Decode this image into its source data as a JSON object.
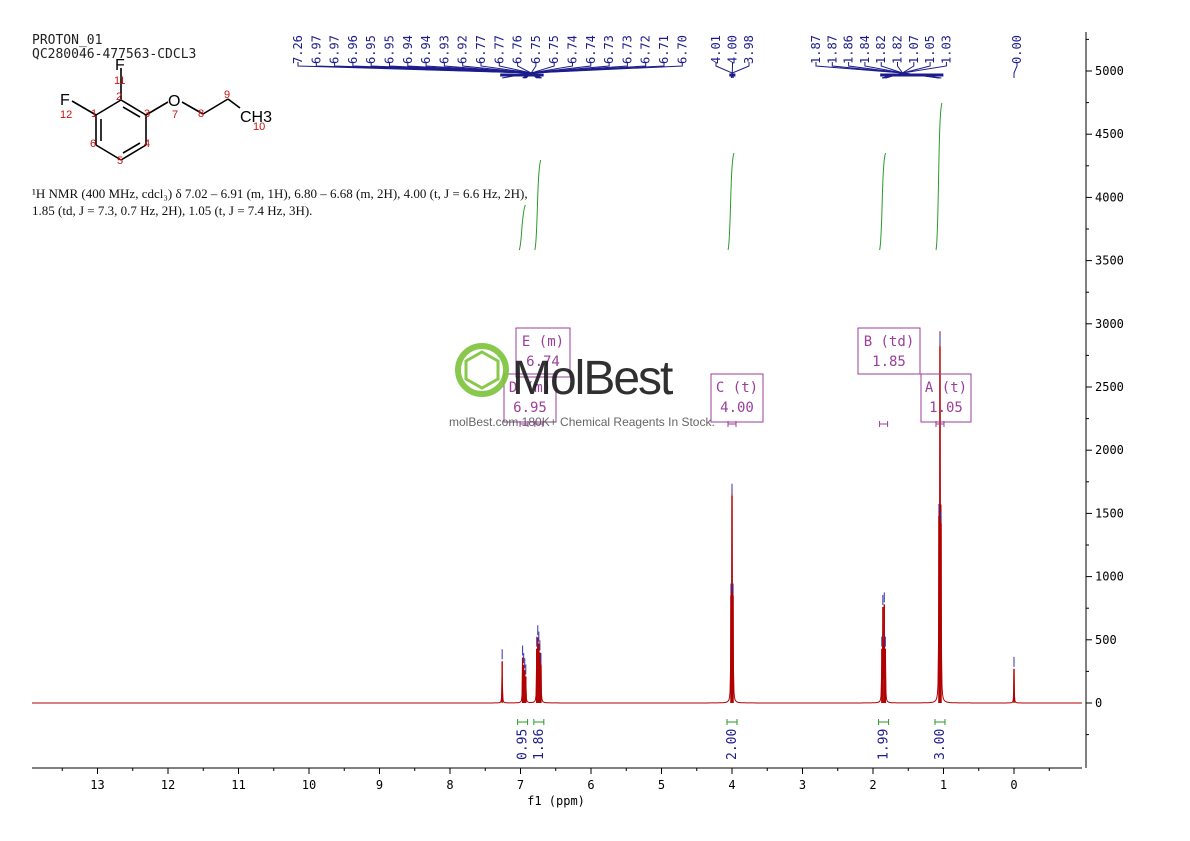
{
  "header": {
    "title_line1": "PROTON_01",
    "title_line2": "QC280046-477563-CDCL3"
  },
  "structure": {
    "atoms": [
      "F",
      "O",
      "CH3"
    ],
    "fluorine_top": "F",
    "fluorine_left": "F",
    "oxygen": "O",
    "methyl": "CH3",
    "atom_numbers": [
      "1",
      "2",
      "3",
      "4",
      "5",
      "6",
      "7",
      "8",
      "9",
      "10",
      "11",
      "12"
    ]
  },
  "description": {
    "line1": "¹H NMR (400 MHz, cdcl₃) δ 7.02 – 6.91 (m, 1H), 6.80 – 6.68 (m, 2H), 4.00 (t, J = 6.6 Hz, 2H),",
    "line2": "1.85 (td, J = 7.3, 0.7 Hz, 2H), 1.05 (t, J = 7.4 Hz, 3H)."
  },
  "watermark": {
    "brand": "MolBest",
    "tagline": "molBest.com 180K+ Chemical Reagents In Stock."
  },
  "chart_data": {
    "type": "line",
    "title": "",
    "xlabel": "f1 (ppm)",
    "ylabel": "",
    "x_reversed": true,
    "xlim": [
      14.0,
      -1.0
    ],
    "ylim": [
      -500,
      5300
    ],
    "x_ticks": [
      "13",
      "12",
      "11",
      "10",
      "9",
      "8",
      "7",
      "6",
      "5",
      "4",
      "3",
      "2",
      "1",
      "0"
    ],
    "y_ticks": [
      "5000",
      "4500",
      "4000",
      "3500",
      "3000",
      "2500",
      "2000",
      "1500",
      "1000",
      "500",
      "0"
    ],
    "peak_labels": [
      {
        "group": "left",
        "labels": [
          "7.26",
          "6.97",
          "6.97",
          "6.96",
          "6.95",
          "6.95",
          "6.94",
          "6.94",
          "6.93",
          "6.92",
          "6.77",
          "6.77",
          "6.76",
          "6.75",
          "6.75",
          "6.74",
          "6.74",
          "6.73",
          "6.73",
          "6.72",
          "6.71",
          "6.70"
        ],
        "ppm": [
          7.26,
          6.97,
          6.97,
          6.96,
          6.95,
          6.95,
          6.94,
          6.94,
          6.93,
          6.92,
          6.77,
          6.77,
          6.76,
          6.75,
          6.75,
          6.74,
          6.74,
          6.73,
          6.73,
          6.72,
          6.71,
          6.7
        ]
      },
      {
        "group": "mid",
        "labels": [
          "4.01",
          "4.00",
          "3.98"
        ],
        "ppm": [
          4.01,
          4.0,
          3.98
        ]
      },
      {
        "group": "right",
        "labels": [
          "1.87",
          "1.87",
          "1.86",
          "1.84",
          "1.82",
          "1.82",
          "1.07",
          "1.05",
          "1.03"
        ],
        "ppm": [
          1.87,
          1.87,
          1.86,
          1.84,
          1.82,
          1.82,
          1.07,
          1.05,
          1.03
        ]
      },
      {
        "group": "tms",
        "labels": [
          "0.00"
        ],
        "ppm": [
          0.0
        ]
      }
    ],
    "peaks": [
      {
        "ppm": 7.26,
        "height": 330
      },
      {
        "ppm": 6.97,
        "height": 360
      },
      {
        "ppm": 6.955,
        "height": 300
      },
      {
        "ppm": 6.94,
        "height": 260
      },
      {
        "ppm": 6.925,
        "height": 210
      },
      {
        "ppm": 6.77,
        "height": 430
      },
      {
        "ppm": 6.755,
        "height": 520
      },
      {
        "ppm": 6.74,
        "height": 470
      },
      {
        "ppm": 6.725,
        "height": 400
      },
      {
        "ppm": 6.71,
        "height": 300
      },
      {
        "ppm": 4.015,
        "height": 850
      },
      {
        "ppm": 4.0,
        "height": 1640
      },
      {
        "ppm": 3.985,
        "height": 850
      },
      {
        "ppm": 1.875,
        "height": 430
      },
      {
        "ppm": 1.86,
        "height": 760
      },
      {
        "ppm": 1.84,
        "height": 780
      },
      {
        "ppm": 1.825,
        "height": 430
      },
      {
        "ppm": 1.065,
        "height": 1480
      },
      {
        "ppm": 1.05,
        "height": 2820
      },
      {
        "ppm": 1.035,
        "height": 1420
      },
      {
        "ppm": 0.0,
        "height": 270
      }
    ],
    "annotations": [
      {
        "letter": "E (m)",
        "shift": "6.74",
        "ppm": 6.74
      },
      {
        "letter": "D (m)",
        "shift": "6.95",
        "ppm": 6.95
      },
      {
        "letter": "C (t)",
        "shift": "4.00",
        "ppm": 4.0
      },
      {
        "letter": "B (td)",
        "shift": "1.85",
        "ppm": 1.85
      },
      {
        "letter": "A (t)",
        "shift": "1.05",
        "ppm": 1.05
      }
    ],
    "integrals": [
      {
        "ppm": 6.97,
        "value": "0.95"
      },
      {
        "ppm": 6.74,
        "value": "1.86"
      },
      {
        "ppm": 4.0,
        "value": "2.00"
      },
      {
        "ppm": 1.85,
        "value": "1.99"
      },
      {
        "ppm": 1.05,
        "value": "3.00"
      }
    ],
    "colors": {
      "spectrum": "#b00000",
      "peak_label": "#1c1c8c",
      "integral": "#2a9a2a",
      "annotation": "#9b3f9b",
      "axis": "#000000"
    }
  }
}
